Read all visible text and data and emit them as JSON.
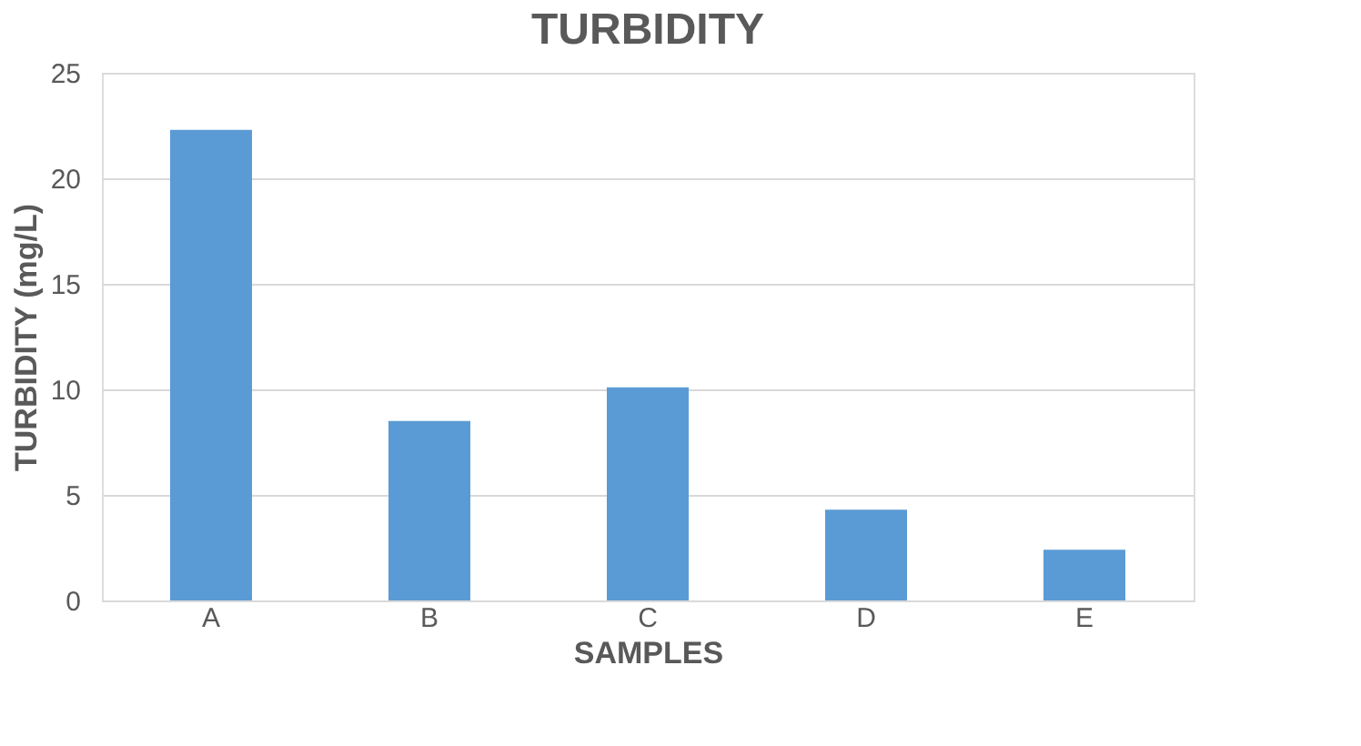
{
  "chart_data": {
    "type": "bar",
    "title": "TURBIDITY",
    "xlabel": "SAMPLES",
    "ylabel": "TURBIDITY (mg/L)",
    "categories": [
      "A",
      "B",
      "C",
      "D",
      "E"
    ],
    "values": [
      22.3,
      8.5,
      10.1,
      4.3,
      2.4
    ],
    "color": "#5b9bd5",
    "ylim": [
      0,
      25
    ],
    "yticks": [
      0,
      5,
      10,
      15,
      20,
      25
    ],
    "grid": "y"
  }
}
